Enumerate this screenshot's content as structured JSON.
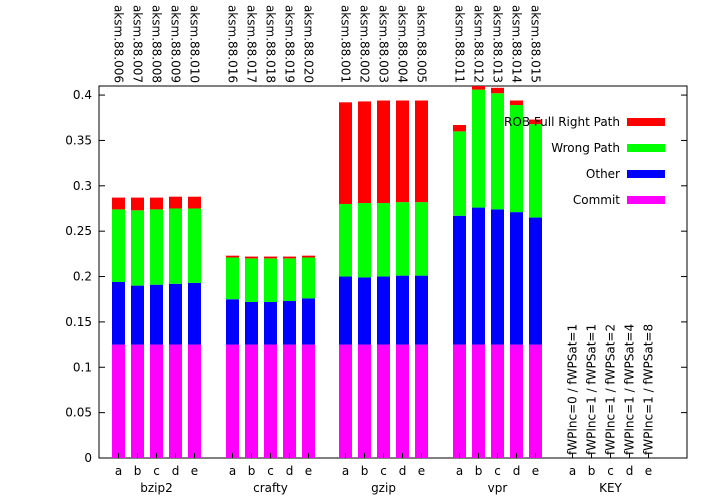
{
  "chart_data": {
    "type": "bar",
    "stacked": true,
    "ylim": [
      0,
      0.41
    ],
    "y_ticks": [
      "0",
      "0.05",
      "0.1",
      "0.15",
      "0.2",
      "0.25",
      "0.3",
      "0.35",
      "0.4"
    ],
    "y_tick_values": [
      0,
      0.05,
      0.1,
      0.15,
      0.2,
      0.25,
      0.3,
      0.35,
      0.4
    ],
    "bar_letters": [
      "a",
      "b",
      "c",
      "d",
      "e"
    ],
    "legend": {
      "placement": "top-right",
      "entries": [
        {
          "name": "ROB Full Right Path",
          "color": "#ff0000"
        },
        {
          "name": "Wrong Path",
          "color": "#00ff00"
        },
        {
          "name": "Other",
          "color": "#0000ff"
        },
        {
          "name": "Commit",
          "color": "#ff00ff"
        }
      ]
    },
    "segment_order": [
      "Commit",
      "Other",
      "Wrong Path",
      "ROB Full Right Path"
    ],
    "colors": {
      "Commit": "#ff00ff",
      "Other": "#0000ff",
      "Wrong Path": "#00ff00",
      "ROB Full Right Path": "#ff0000"
    },
    "groups": [
      {
        "name": "bzip2",
        "top_labels": [
          "aksm.88.006",
          "aksm.88.007",
          "aksm.88.008",
          "aksm.88.009",
          "aksm.88.010"
        ],
        "bars": [
          {
            "Commit": 0.125,
            "Other": 0.069,
            "Wrong Path": 0.08,
            "ROB Full Right Path": 0.013
          },
          {
            "Commit": 0.125,
            "Other": 0.065,
            "Wrong Path": 0.083,
            "ROB Full Right Path": 0.014
          },
          {
            "Commit": 0.125,
            "Other": 0.066,
            "Wrong Path": 0.083,
            "ROB Full Right Path": 0.013
          },
          {
            "Commit": 0.125,
            "Other": 0.067,
            "Wrong Path": 0.083,
            "ROB Full Right Path": 0.013
          },
          {
            "Commit": 0.125,
            "Other": 0.068,
            "Wrong Path": 0.082,
            "ROB Full Right Path": 0.013
          }
        ]
      },
      {
        "name": "crafty",
        "top_labels": [
          "aksm.88.016",
          "aksm.88.017",
          "aksm.88.018",
          "aksm.88.019",
          "aksm.88.020"
        ],
        "bars": [
          {
            "Commit": 0.125,
            "Other": 0.05,
            "Wrong Path": 0.046,
            "ROB Full Right Path": 0.002
          },
          {
            "Commit": 0.125,
            "Other": 0.047,
            "Wrong Path": 0.048,
            "ROB Full Right Path": 0.002
          },
          {
            "Commit": 0.125,
            "Other": 0.047,
            "Wrong Path": 0.048,
            "ROB Full Right Path": 0.002
          },
          {
            "Commit": 0.125,
            "Other": 0.048,
            "Wrong Path": 0.047,
            "ROB Full Right Path": 0.002
          },
          {
            "Commit": 0.125,
            "Other": 0.051,
            "Wrong Path": 0.045,
            "ROB Full Right Path": 0.002
          }
        ]
      },
      {
        "name": "gzip",
        "top_labels": [
          "aksm.88.001",
          "aksm.88.002",
          "aksm.88.003",
          "aksm.88.004",
          "aksm.88.005"
        ],
        "bars": [
          {
            "Commit": 0.125,
            "Other": 0.075,
            "Wrong Path": 0.08,
            "ROB Full Right Path": 0.112
          },
          {
            "Commit": 0.125,
            "Other": 0.074,
            "Wrong Path": 0.082,
            "ROB Full Right Path": 0.112
          },
          {
            "Commit": 0.125,
            "Other": 0.075,
            "Wrong Path": 0.081,
            "ROB Full Right Path": 0.113
          },
          {
            "Commit": 0.125,
            "Other": 0.076,
            "Wrong Path": 0.081,
            "ROB Full Right Path": 0.112
          },
          {
            "Commit": 0.125,
            "Other": 0.076,
            "Wrong Path": 0.081,
            "ROB Full Right Path": 0.112
          }
        ]
      },
      {
        "name": "vpr",
        "top_labels": [
          "aksm.88.011",
          "aksm.88.012",
          "aksm.88.013",
          "aksm.88.014",
          "aksm.88.015"
        ],
        "bars": [
          {
            "Commit": 0.125,
            "Other": 0.142,
            "Wrong Path": 0.093,
            "ROB Full Right Path": 0.007
          },
          {
            "Commit": 0.125,
            "Other": 0.151,
            "Wrong Path": 0.13,
            "ROB Full Right Path": 0.004
          },
          {
            "Commit": 0.125,
            "Other": 0.149,
            "Wrong Path": 0.128,
            "ROB Full Right Path": 0.006
          },
          {
            "Commit": 0.125,
            "Other": 0.146,
            "Wrong Path": 0.118,
            "ROB Full Right Path": 0.005
          },
          {
            "Commit": 0.125,
            "Other": 0.14,
            "Wrong Path": 0.103,
            "ROB Full Right Path": 0.005
          }
        ]
      }
    ],
    "key_group": {
      "name": "KEY",
      "letters": [
        "a",
        "b",
        "c",
        "d",
        "e"
      ],
      "labels": [
        "fWPInc=0 / fWPSat=1",
        "fWPInc=1 / fWPSat=1",
        "fWPInc=1 / fWPSat=2",
        "fWPInc=1 / fWPSat=4",
        "fWPInc=1 / fWPSat=8"
      ]
    }
  }
}
